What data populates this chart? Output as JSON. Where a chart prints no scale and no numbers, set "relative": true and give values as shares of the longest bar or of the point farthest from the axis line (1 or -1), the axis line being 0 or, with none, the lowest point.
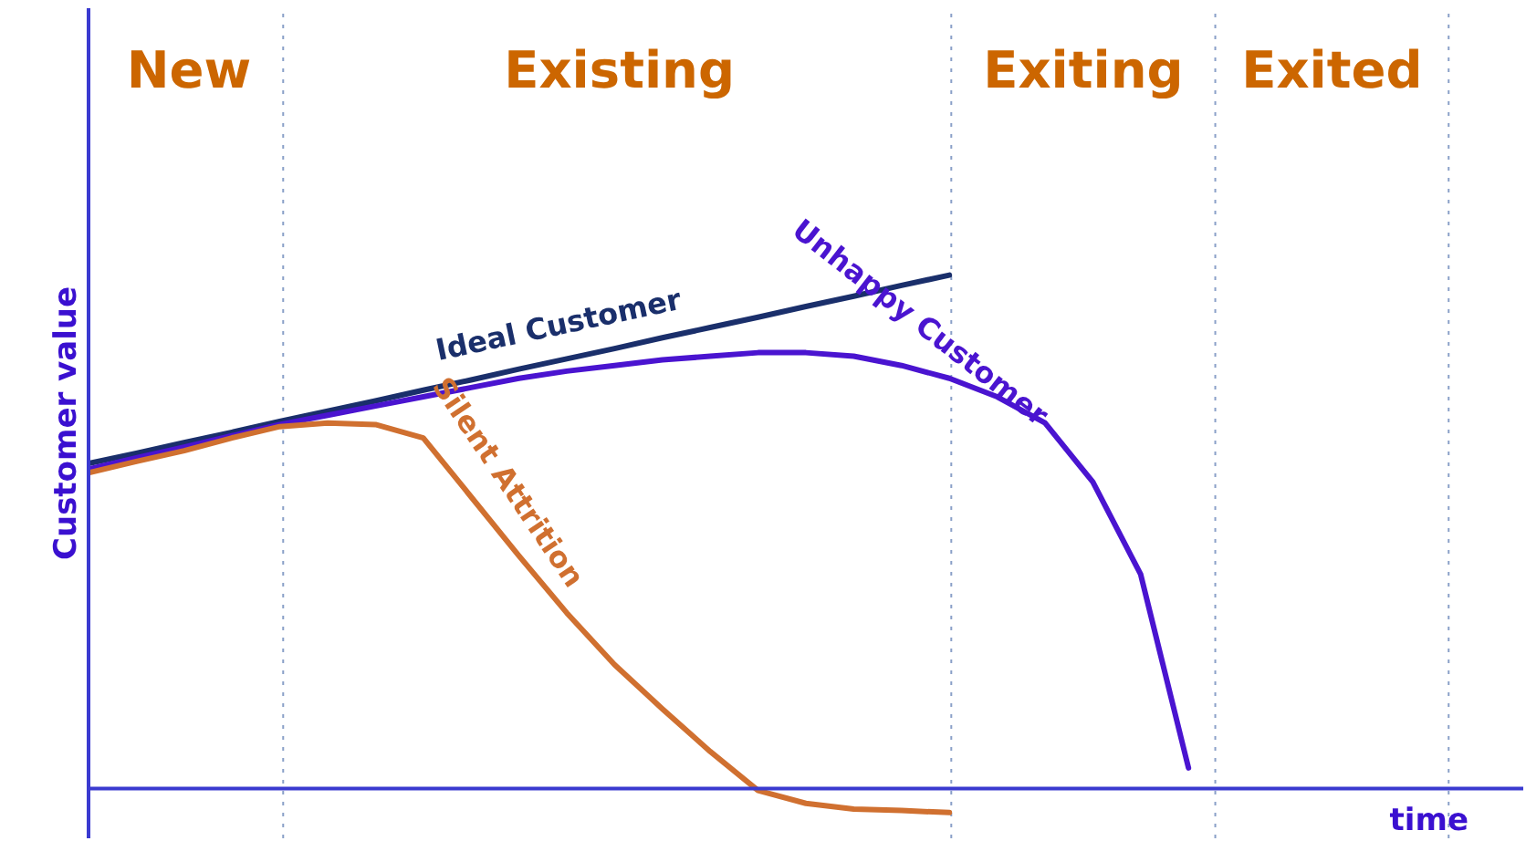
{
  "chart_data": {
    "type": "line",
    "relative": true,
    "xlabel": "time",
    "ylabel": "Customer value",
    "marker": "none",
    "line_style": "solid",
    "categories": [
      null,
      null,
      null,
      null,
      null,
      null,
      null,
      null,
      null,
      null,
      null,
      null,
      null,
      null,
      null,
      null,
      null,
      null,
      null,
      null,
      null,
      null,
      null,
      null,
      null,
      null,
      null,
      null,
      null,
      null,
      null
    ],
    "annotations": [
      "New",
      "Existing",
      "Exiting",
      "Exited"
    ],
    "ref_lines": [
      {
        "axis": "y",
        "value": 0,
        "color": "#3a3ad0"
      }
    ],
    "series": [
      {
        "name": "Ideal Customer",
        "color": "#1a2f6b",
        "values": [
          0.633,
          0.653,
          0.674,
          0.694,
          0.715,
          0.735,
          0.755,
          0.776,
          0.796,
          0.817,
          0.837,
          0.857,
          0.878,
          0.898,
          0.918,
          0.939,
          0.959,
          0.98,
          1.0,
          null,
          null,
          null,
          null,
          null,
          null,
          null,
          null,
          null,
          null,
          null,
          null
        ]
      },
      {
        "name": "Unhappy Customer",
        "color": "#4a14d0",
        "values": [
          0.622,
          0.644,
          0.665,
          0.687,
          0.709,
          0.727,
          0.745,
          0.763,
          0.781,
          0.799,
          0.813,
          0.824,
          0.835,
          0.842,
          0.849,
          0.849,
          0.842,
          0.824,
          0.799,
          0.763,
          0.712,
          0.597,
          0.417,
          0.04,
          null,
          null,
          null,
          null,
          null,
          null,
          null
        ]
      },
      {
        "name": "Silent Attrition",
        "color": "#d07030",
        "values": [
          0.615,
          0.637,
          0.658,
          0.683,
          0.705,
          0.712,
          0.709,
          0.683,
          0.568,
          0.453,
          0.342,
          0.241,
          0.155,
          0.072,
          -0.004,
          -0.029,
          -0.04,
          -0.043,
          -0.047,
          null,
          null,
          null,
          null,
          null,
          null,
          null,
          null,
          null,
          null,
          null,
          null
        ]
      }
    ]
  }
}
